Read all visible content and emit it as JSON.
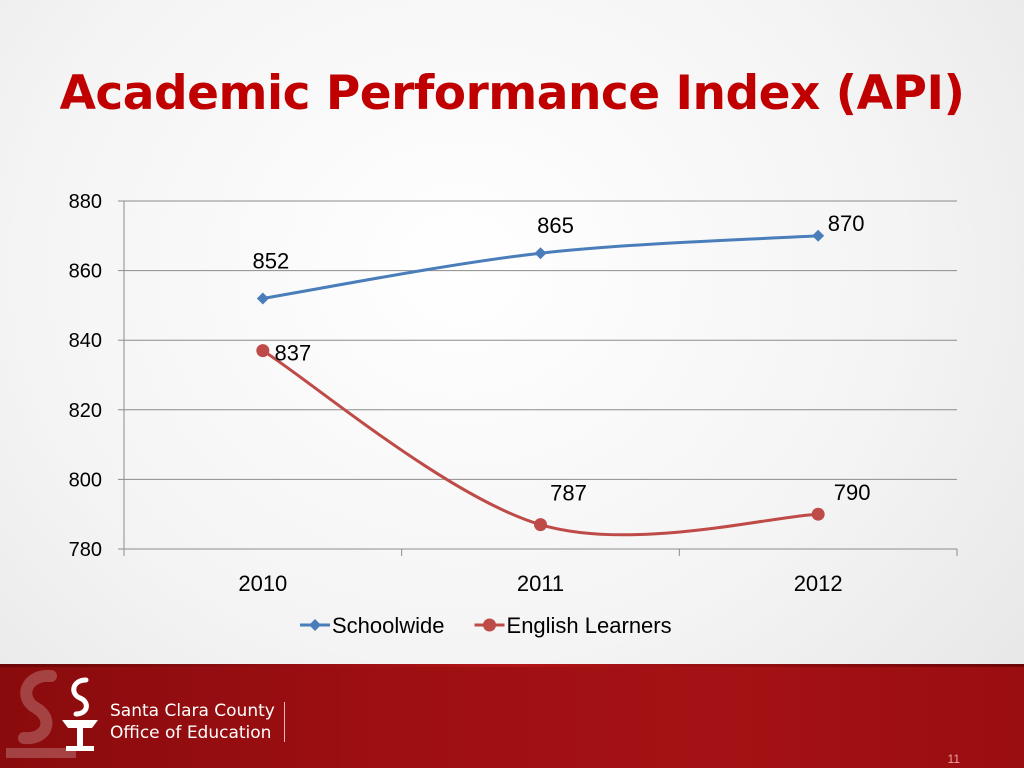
{
  "slide": {
    "title": "Academic Performance Index (API)",
    "page_number": "11",
    "org_line1": "Santa Clara County",
    "org_line2": "Office of Education"
  },
  "colors": {
    "title": "#c00000",
    "schoolwide": "#4a7ebb",
    "english_learners": "#be4b48",
    "footer": "#a01014"
  },
  "chart_data": {
    "type": "line",
    "title": "",
    "xlabel": "",
    "ylabel": "",
    "categories": [
      "2010",
      "2011",
      "2012"
    ],
    "ylim": [
      780,
      880
    ],
    "yticks": [
      780,
      800,
      820,
      840,
      860,
      880
    ],
    "grid": true,
    "legend": "bottom",
    "smooth": true,
    "series": [
      {
        "name": "Schoolwide",
        "values": [
          852,
          865,
          870
        ],
        "marker": "diamond",
        "color": "#4a7ebb"
      },
      {
        "name": "English Learners",
        "values": [
          837,
          787,
          790
        ],
        "marker": "circle",
        "color": "#be4b48"
      }
    ]
  }
}
